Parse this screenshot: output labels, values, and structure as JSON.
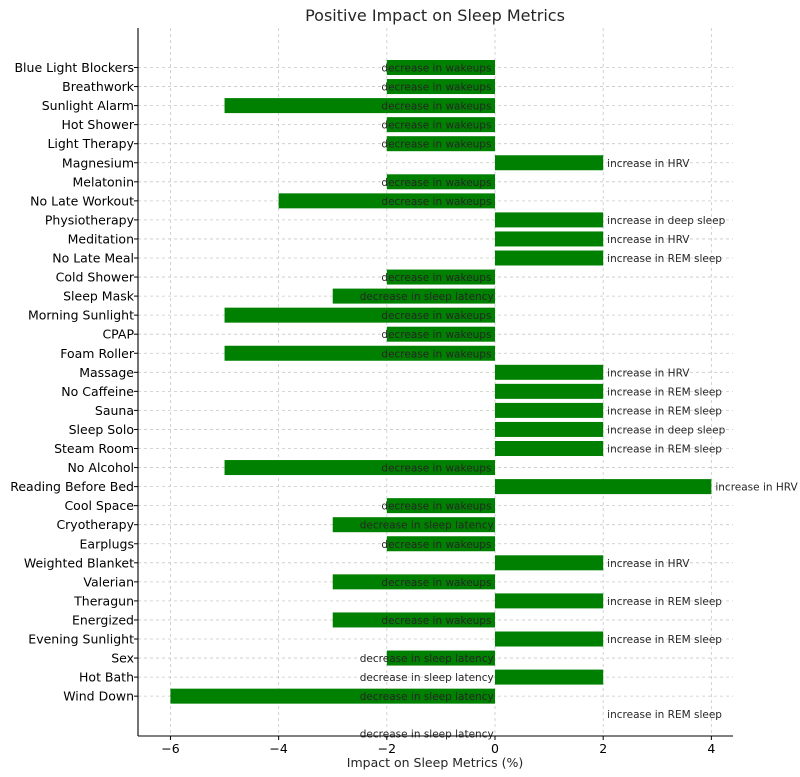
{
  "chart_data": {
    "type": "bar",
    "orientation": "horizontal",
    "title": "Positive Impact on Sleep Metrics",
    "xlabel": "Impact on Sleep Metrics (%)",
    "ylabel": "",
    "xlim": [
      -6.6,
      4.4
    ],
    "xticks": [
      -6,
      -4,
      -2,
      0,
      2,
      4
    ],
    "xtick_labels": [
      "−6",
      "−4",
      "−2",
      "0",
      "2",
      "4"
    ],
    "grid": true,
    "bar_color": "#008000",
    "categories": [
      "Blue Light Blockers",
      "Breathwork",
      "Sunlight Alarm",
      "Hot Shower",
      "Light Therapy",
      "Magnesium",
      "Melatonin",
      "No Late Workout",
      "Physiotherapy",
      "Meditation",
      "No Late Meal",
      "Cold Shower",
      "Sleep Mask",
      "Morning Sunlight",
      "CPAP",
      "Foam Roller",
      "Massage",
      "No Caffeine",
      "Sauna",
      "Sleep Solo",
      "Steam Room",
      "No Alcohol",
      "Reading Before Bed",
      "Cool Space",
      "Cryotherapy",
      "Earplugs",
      "Weighted Blanket",
      "Valerian",
      "Theragun",
      "Energized",
      "Evening Sunlight",
      "Sex",
      "Hot Bath",
      "Wind Down"
    ],
    "values": [
      -2,
      -2,
      -5,
      -2,
      -2,
      2,
      -2,
      -4,
      2,
      2,
      2,
      -2,
      -3,
      -5,
      -2,
      -5,
      2,
      2,
      2,
      2,
      2,
      -5,
      4,
      -2,
      -3,
      -2,
      2,
      -3,
      2,
      -3,
      2,
      -2,
      2,
      -6
    ],
    "bar_labels": [
      "decrease in wakeups",
      "decrease in wakeups",
      "decrease in wakeups",
      "decrease in wakeups",
      "decrease in wakeups",
      "increase in HRV",
      "decrease in wakeups",
      "decrease in wakeups",
      "increase in deep sleep",
      "increase in HRV",
      "increase in REM sleep",
      "decrease in wakeups",
      "decrease in sleep latency",
      "decrease in wakeups",
      "decrease in wakeups",
      "decrease in wakeups",
      "increase in HRV",
      "increase in REM sleep",
      "increase in REM sleep",
      "increase in deep sleep",
      "increase in REM sleep",
      "decrease in wakeups",
      "increase in HRV",
      "decrease in wakeups",
      "decrease in sleep latency",
      "decrease in wakeups",
      "increase in HRV",
      "decrease in wakeups",
      "increase in REM sleep",
      "decrease in wakeups",
      "increase in REM sleep",
      "decrease in sleep latency",
      "decrease in sleep latency",
      "decrease in sleep latency"
    ],
    "extra_annotations": [
      {
        "text": "increase in REM sleep",
        "x": 2,
        "row": 34
      },
      {
        "text": "decrease in sleep latency",
        "x": -2,
        "row": 35
      }
    ]
  }
}
